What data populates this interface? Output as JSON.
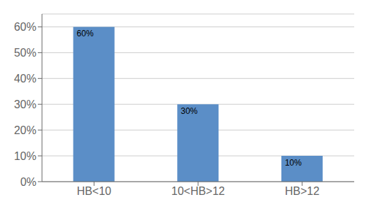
{
  "chart_data": {
    "type": "bar",
    "categories": [
      "HB<10",
      "10<HB>12",
      "HB>12"
    ],
    "values": [
      60,
      30,
      10
    ],
    "value_labels": [
      "60%",
      "30%",
      "10%"
    ],
    "data_labels": true,
    "color": "#5b8ec7",
    "ylim": [
      0,
      65
    ],
    "yticks": [
      {
        "value": 0,
        "label": "0%"
      },
      {
        "value": 10,
        "label": "10%"
      },
      {
        "value": 20,
        "label": "20%"
      },
      {
        "value": 30,
        "label": "30%"
      },
      {
        "value": 40,
        "label": "40%"
      },
      {
        "value": 50,
        "label": "50%"
      },
      {
        "value": 60,
        "label": "60%"
      }
    ],
    "grid": true
  }
}
